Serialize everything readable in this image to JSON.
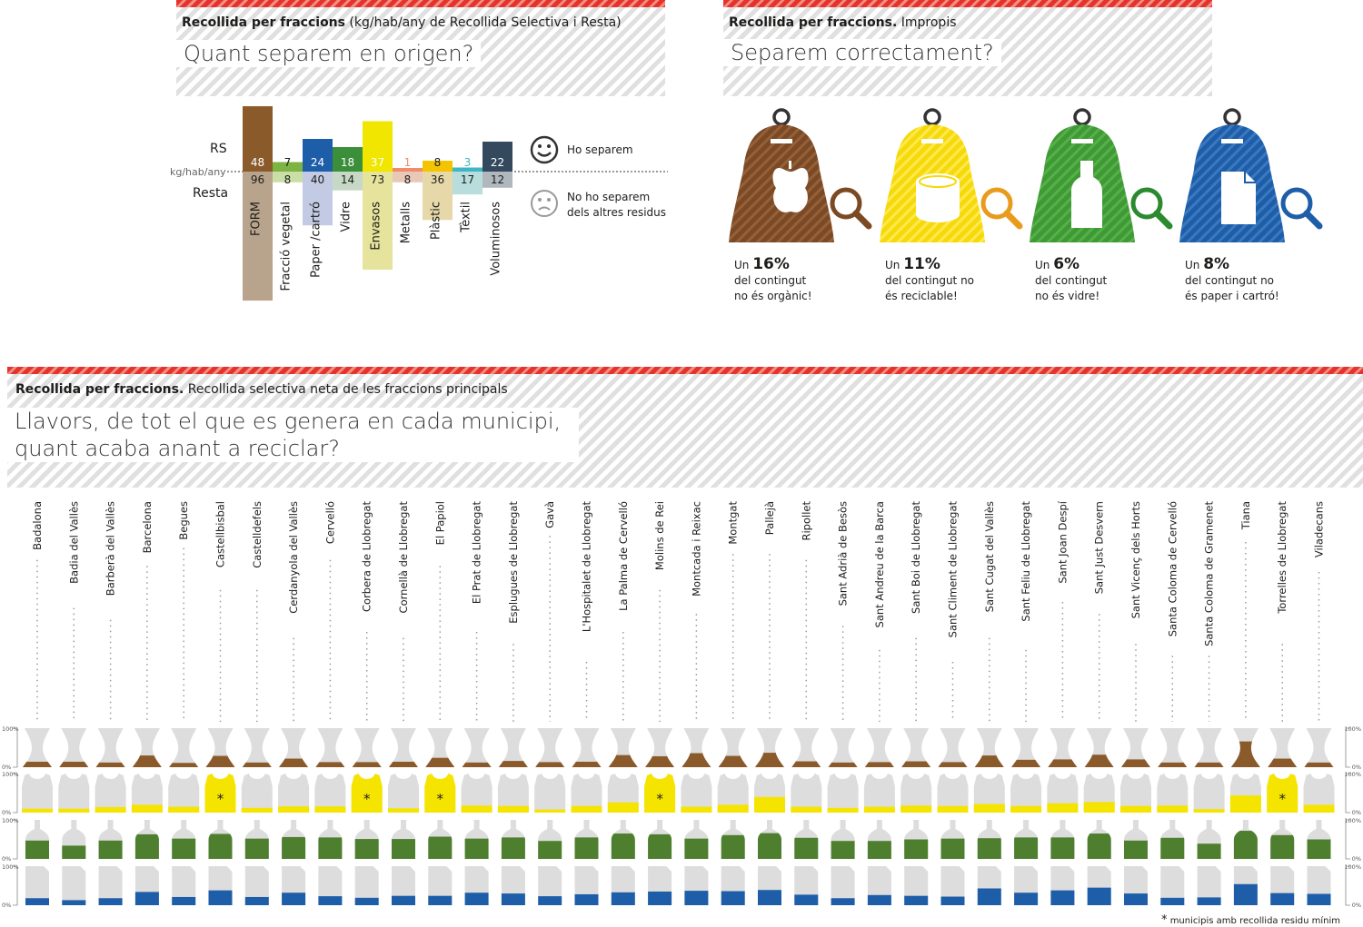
{
  "panel1": {
    "label_bold": "Recollida per fraccions",
    "label_rest": " (kg/hab/any de Recollida Selectiva i Resta)",
    "title": "Quant separem en origen?",
    "rs_label": "RS",
    "unit_label": "kg/hab/any",
    "resta_label": "Resta",
    "legend_separem": "Ho separem",
    "legend_no_line1": "No ho separem",
    "legend_no_line2": "dels altres residus"
  },
  "panel2": {
    "label_bold": "Recollida per fraccions.",
    "label_rest": " Impropis",
    "title": "Separem correctament?",
    "bins": [
      {
        "icon": "apple-core-icon",
        "color": "#7b4a24",
        "stripe": "#93603a",
        "handle": "#7b4a24",
        "prefix": "Un ",
        "pct": "16%",
        "line2": "del contingut",
        "line3": "no és orgànic!"
      },
      {
        "icon": "can-icon",
        "color": "#f5d90a",
        "stripe": "#ffe94d",
        "handle": "#e89b1c",
        "prefix": "Un ",
        "pct": "11%",
        "line2": "del contingut no",
        "line3": "és reciclable!"
      },
      {
        "icon": "bottle-icon",
        "color": "#3f9a35",
        "stripe": "#55b04a",
        "handle": "#2b8a30",
        "prefix": "Un ",
        "pct": "6%",
        "line2": "del contingut",
        "line3": "no és vidre!"
      },
      {
        "icon": "paper-sheet-icon",
        "color": "#1e5ea8",
        "stripe": "#3a79c0",
        "handle": "#1e5ea8",
        "prefix": "Un ",
        "pct": "8%",
        "line2": "del contingut no",
        "line3": "és paper i cartró!"
      }
    ]
  },
  "panel3": {
    "label_bold": "Recollida per fraccions.",
    "label_rest": " Recollida selectiva neta de les fraccions principals",
    "title_line1": "Llavors, de tot el que es genera en cada municipi,",
    "title_line2": "quant acaba anant a reciclar?",
    "axis_top": "100%",
    "axis_bottom": "0%",
    "footnote_star": "*",
    "footnote": "municipis amb recollida residu mínim",
    "asterisk": "*",
    "colors": {
      "organic": "#8b5a2b",
      "envasos": "#f5e400",
      "vidre": "#4e7f2f",
      "paper": "#1e5ea8",
      "empty": "#dddddd"
    }
  },
  "chart_data": [
    {
      "type": "bar",
      "title": "Quant separem en origen?",
      "ylabel": "kg/hab/any",
      "categories": [
        "FORM",
        "Fracció vegetal",
        "Paper /cartró",
        "Vidre",
        "Envasos",
        "Metalls",
        "Plàstic",
        "Tèxtil",
        "Voluminosos"
      ],
      "colors_rs": [
        "#8b5a2b",
        "#7cb342",
        "#1e5ea8",
        "#3b8e3a",
        "#f0e600",
        "#f08c6a",
        "#f5c400",
        "#3fb6c4",
        "#34495e"
      ],
      "colors_resta": [
        "#b8a48c",
        "#c9dfa6",
        "#c2cbe3",
        "#c7d9c6",
        "#e6e39c",
        "#e8c9b8",
        "#e6d8a8",
        "#b9dcdc",
        "#b0b7bd"
      ],
      "label_colors_rs": [
        "#ffffff",
        "#1d1d1b",
        "#ffffff",
        "#ffffff",
        "#ffffff",
        "#f08c6a",
        "#1d1d1b",
        "#3fb6c4",
        "#ffffff"
      ],
      "series": [
        {
          "name": "RS",
          "values": [
            48,
            7,
            24,
            18,
            37,
            1,
            8,
            3,
            22
          ]
        },
        {
          "name": "Resta",
          "values": [
            96,
            8,
            40,
            14,
            73,
            8,
            36,
            17,
            12
          ]
        }
      ]
    },
    {
      "type": "bar",
      "title": "Llavors, de tot el que es genera en cada municipi, quant acaba anant a reciclar?",
      "ylim": [
        0,
        100
      ],
      "categories": [
        "Badalona",
        "Badia del Vallès",
        "Barberà del Vallès",
        "Barcelona",
        "Begues",
        "Castellbisbal",
        "Castelldefels",
        "Cerdanyola del Vallès",
        "Cervelló",
        "Corbera de Llobregat",
        "Cornellà de Llobregat",
        "El Papiol",
        "El Prat de Llobregat",
        "Esplugues de Llobregat",
        "Gavà",
        "L'Hospitalet de Llobregat",
        "La Palma de Cervelló",
        "Molins de Rei",
        "Montcada i Reixac",
        "Montgat",
        "Pallejà",
        "Ripollet",
        "Sant Adrià de Besòs",
        "Sant Andreu de la Barca",
        "Sant Boi de Llobregat",
        "Sant Climent de Llobregat",
        "Sant Cugat del Vallès",
        "Sant Feliu de Llobregat",
        "Sant Joan Despí",
        "Sant Just Desvern",
        "Sant Vicenç dels Horts",
        "Santa Coloma de Cervelló",
        "Santa Coloma de Gramenet",
        "Tiana",
        "Torrelles de Llobregat",
        "Viladecans"
      ],
      "minimal_collection": [
        false,
        false,
        false,
        false,
        false,
        true,
        false,
        false,
        false,
        true,
        false,
        true,
        false,
        false,
        false,
        false,
        false,
        true,
        false,
        false,
        false,
        false,
        false,
        false,
        false,
        false,
        false,
        false,
        false,
        false,
        false,
        false,
        false,
        false,
        true,
        false
      ],
      "series": [
        {
          "name": "organic",
          "values": [
            14,
            14,
            12,
            30,
            11,
            29,
            12,
            22,
            13,
            13,
            14,
            24,
            12,
            16,
            13,
            14,
            31,
            28,
            36,
            29,
            37,
            15,
            12,
            13,
            15,
            13,
            30,
            19,
            20,
            32,
            20,
            12,
            12,
            66,
            22,
            12
          ]
        },
        {
          "name": "envasos",
          "values": [
            10,
            10,
            14,
            20,
            15,
            100,
            12,
            16,
            16,
            100,
            11,
            100,
            18,
            17,
            8,
            17,
            26,
            100,
            15,
            20,
            40,
            15,
            12,
            15,
            18,
            17,
            22,
            17,
            24,
            27,
            17,
            18,
            9,
            44,
            100,
            20
          ]
        },
        {
          "name": "vidre",
          "values": [
            47,
            34,
            47,
            63,
            52,
            64,
            52,
            56,
            55,
            51,
            51,
            57,
            52,
            55,
            46,
            55,
            65,
            63,
            52,
            61,
            66,
            54,
            46,
            46,
            50,
            52,
            53,
            55,
            55,
            65,
            47,
            54,
            39,
            72,
            61,
            50
          ]
        },
        {
          "name": "paper",
          "values": [
            18,
            13,
            18,
            34,
            21,
            38,
            21,
            32,
            23,
            19,
            24,
            24,
            32,
            30,
            23,
            28,
            33,
            35,
            37,
            36,
            39,
            27,
            18,
            26,
            24,
            22,
            43,
            32,
            38,
            45,
            30,
            19,
            20,
            54,
            31,
            29
          ]
        }
      ]
    }
  ]
}
